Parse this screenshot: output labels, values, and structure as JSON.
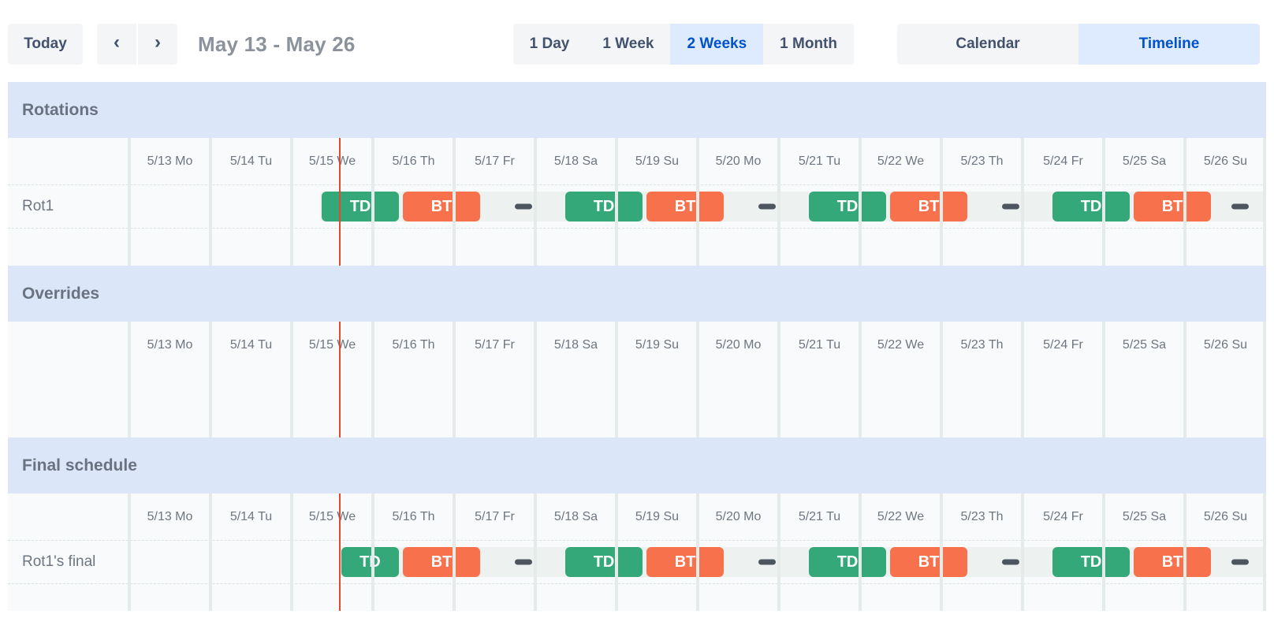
{
  "toolbar": {
    "today_label": "Today",
    "icons": {
      "prev": "‹",
      "next": "›"
    },
    "date_range": "May 13 - May 26",
    "zoom_options": [
      {
        "label": "1 Day",
        "selected": false
      },
      {
        "label": "1 Week",
        "selected": false
      },
      {
        "label": "2 Weeks",
        "selected": true
      },
      {
        "label": "1 Month",
        "selected": false
      }
    ],
    "view_options": [
      {
        "label": "Calendar",
        "selected": false
      },
      {
        "label": "Timeline",
        "selected": true
      }
    ]
  },
  "days": [
    "5/13 Mo",
    "5/14 Tu",
    "5/15 We",
    "5/16 Th",
    "5/17 Fr",
    "5/18 Sa",
    "5/19 Su",
    "5/20 Mo",
    "5/21 Tu",
    "5/22 We",
    "5/23 Th",
    "5/24 Fr",
    "5/25 Sa",
    "5/26 Su"
  ],
  "now_marker": {
    "day": "5/15",
    "position_days": 2.59
  },
  "sections": [
    {
      "title": "Rotations",
      "rows": [
        {
          "label": "Rot1",
          "coverage_start": 2.35,
          "segments": [
            {
              "kind": "shift",
              "label": "TD",
              "color": "green",
              "start": 2.35,
              "end": 3.35
            },
            {
              "kind": "shift",
              "label": "BT",
              "color": "orange",
              "start": 3.35,
              "end": 4.35
            },
            {
              "kind": "gap",
              "start": 4.35,
              "end": 5.35
            },
            {
              "kind": "shift",
              "label": "TD",
              "color": "green",
              "start": 5.35,
              "end": 6.35
            },
            {
              "kind": "shift",
              "label": "BT",
              "color": "orange",
              "start": 6.35,
              "end": 7.35
            },
            {
              "kind": "gap",
              "start": 7.35,
              "end": 8.35
            },
            {
              "kind": "shift",
              "label": "TD",
              "color": "green",
              "start": 8.35,
              "end": 9.35
            },
            {
              "kind": "shift",
              "label": "BT",
              "color": "orange",
              "start": 9.35,
              "end": 10.35
            },
            {
              "kind": "gap",
              "start": 10.35,
              "end": 11.35
            },
            {
              "kind": "shift",
              "label": "TD",
              "color": "green",
              "start": 11.35,
              "end": 12.35
            },
            {
              "kind": "shift",
              "label": "BT",
              "color": "orange",
              "start": 12.35,
              "end": 13.35
            },
            {
              "kind": "gap",
              "start": 13.35,
              "end": 14
            }
          ]
        }
      ]
    },
    {
      "title": "Overrides",
      "rows": []
    },
    {
      "title": "Final schedule",
      "rows": [
        {
          "label": "Rot1's final",
          "coverage_start": 2.59,
          "segments": [
            {
              "kind": "shift",
              "label": "TD",
              "color": "green",
              "start": 2.59,
              "end": 3.35
            },
            {
              "kind": "shift",
              "label": "BT",
              "color": "orange",
              "start": 3.35,
              "end": 4.35
            },
            {
              "kind": "gap",
              "start": 4.35,
              "end": 5.35
            },
            {
              "kind": "shift",
              "label": "TD",
              "color": "green",
              "start": 5.35,
              "end": 6.35
            },
            {
              "kind": "shift",
              "label": "BT",
              "color": "orange",
              "start": 6.35,
              "end": 7.35
            },
            {
              "kind": "gap",
              "start": 7.35,
              "end": 8.35
            },
            {
              "kind": "shift",
              "label": "TD",
              "color": "green",
              "start": 8.35,
              "end": 9.35
            },
            {
              "kind": "shift",
              "label": "BT",
              "color": "orange",
              "start": 9.35,
              "end": 10.35
            },
            {
              "kind": "gap",
              "start": 10.35,
              "end": 11.35
            },
            {
              "kind": "shift",
              "label": "TD",
              "color": "green",
              "start": 11.35,
              "end": 12.35
            },
            {
              "kind": "shift",
              "label": "BT",
              "color": "orange",
              "start": 12.35,
              "end": 13.35
            },
            {
              "kind": "gap",
              "start": 13.35,
              "end": 14
            }
          ]
        }
      ]
    }
  ],
  "colors": {
    "accent_blue": "#0052cc",
    "selected_bg": "#deebff",
    "button_bg": "#f4f5f7",
    "button_text": "#42526e",
    "band_bg": "#dbe7f9",
    "shift_green": "#35a879",
    "shift_orange": "#f8714d",
    "gap_strip": "#edf1ef",
    "gap_dash": "#4d565f",
    "now_line": "#df4a31"
  }
}
